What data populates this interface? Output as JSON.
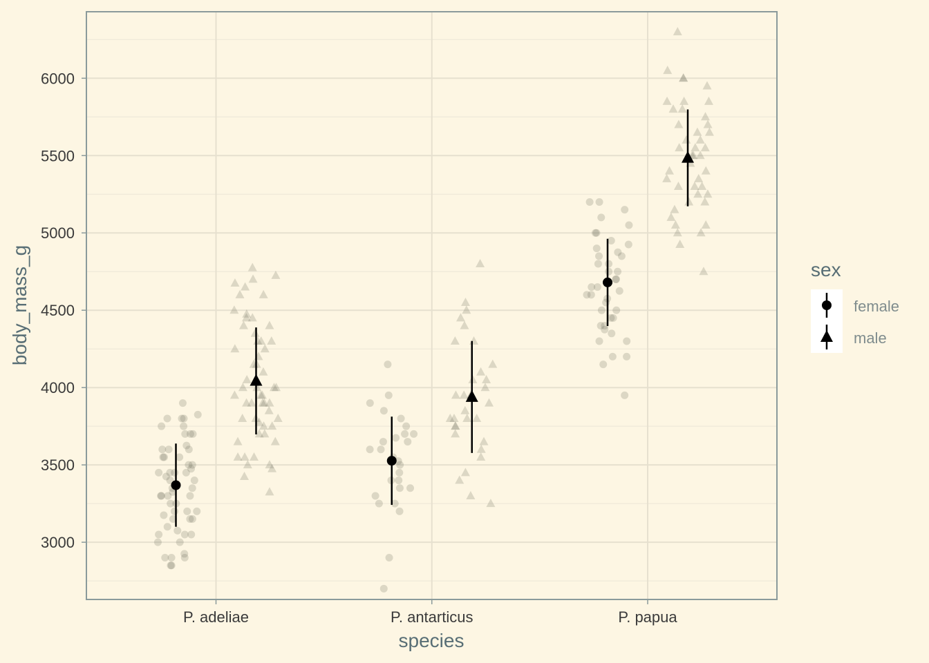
{
  "chart_data": {
    "type": "scatter",
    "title": "",
    "xlabel": "species",
    "ylabel": "body_mass_g",
    "categories": [
      "P. adeliae",
      "P. antarticus",
      "P. papua"
    ],
    "ylim": [
      2630,
      6430
    ],
    "yticks": [
      3000,
      3500,
      4000,
      4500,
      5000,
      5500,
      6000
    ],
    "grid": true,
    "legend": {
      "title": "sex",
      "placement": "right",
      "entries": [
        {
          "label": "female",
          "shape": "circle"
        },
        {
          "label": "male",
          "shape": "triangle"
        }
      ]
    },
    "summary": [
      {
        "species": "P. adeliae",
        "sex": "female",
        "mean": 3369,
        "lower": 3100,
        "upper": 3638
      },
      {
        "species": "P. adeliae",
        "sex": "male",
        "mean": 4043,
        "lower": 3697,
        "upper": 4389
      },
      {
        "species": "P. antarticus",
        "sex": "female",
        "mean": 3527,
        "lower": 3242,
        "upper": 3812
      },
      {
        "species": "P. antarticus",
        "sex": "male",
        "mean": 3939,
        "lower": 3577,
        "upper": 4301
      },
      {
        "species": "P. papua",
        "sex": "female",
        "mean": 4680,
        "lower": 4398,
        "upper": 4962
      },
      {
        "species": "P. papua",
        "sex": "male",
        "mean": 5485,
        "lower": 5172,
        "upper": 5798
      }
    ],
    "points": [
      {
        "species": "P. adeliae",
        "sex": "female",
        "values": [
          3900,
          3800,
          3800,
          3825,
          3800,
          3750,
          3750,
          3700,
          3700,
          3700,
          3625,
          3600,
          3600,
          3600,
          3550,
          3550,
          3550,
          3500,
          3500,
          3475,
          3450,
          3450,
          3450,
          3450,
          3425,
          3400,
          3400,
          3350,
          3350,
          3325,
          3300,
          3300,
          3300,
          3300,
          3250,
          3250,
          3200,
          3200,
          3200,
          3175,
          3150,
          3150,
          3150,
          3100,
          3075,
          3050,
          3050,
          3050,
          3000,
          3000,
          2925,
          2900,
          2900,
          2900,
          2850,
          2850
        ]
      },
      {
        "species": "P. adeliae",
        "sex": "male",
        "values": [
          4775,
          4725,
          4700,
          4675,
          4650,
          4600,
          4600,
          4500,
          4475,
          4450,
          4450,
          4400,
          4400,
          4350,
          4300,
          4300,
          4300,
          4250,
          4250,
          4200,
          4150,
          4150,
          4100,
          4050,
          4050,
          4000,
          4000,
          4000,
          4000,
          3950,
          3950,
          3950,
          3900,
          3900,
          3900,
          3900,
          3900,
          3850,
          3800,
          3800,
          3800,
          3775,
          3750,
          3750,
          3700,
          3700,
          3650,
          3650,
          3550,
          3550,
          3550,
          3500,
          3500,
          3475,
          3425,
          3325
        ]
      },
      {
        "species": "P. antarticus",
        "sex": "female",
        "values": [
          4150,
          3950,
          3900,
          3850,
          3800,
          3750,
          3700,
          3700,
          3675,
          3650,
          3650,
          3600,
          3600,
          3550,
          3525,
          3500,
          3450,
          3400,
          3400,
          3350,
          3350,
          3300,
          3250,
          3250,
          3200,
          2900,
          2700
        ]
      },
      {
        "species": "P. antarticus",
        "sex": "male",
        "values": [
          4800,
          4550,
          4500,
          4450,
          4400,
          4300,
          4300,
          4150,
          4100,
          4050,
          4050,
          4000,
          3950,
          3950,
          3950,
          3950,
          3900,
          3850,
          3800,
          3800,
          3800,
          3800,
          3750,
          3750,
          3700,
          3650,
          3600,
          3550,
          3450,
          3400,
          3300,
          3250
        ]
      },
      {
        "species": "P. papua",
        "sex": "female",
        "values": [
          5200,
          5200,
          5150,
          5100,
          5050,
          5000,
          5000,
          4950,
          4925,
          4900,
          4875,
          4850,
          4850,
          4800,
          4800,
          4750,
          4750,
          4700,
          4700,
          4650,
          4650,
          4625,
          4600,
          4600,
          4575,
          4550,
          4500,
          4500,
          4450,
          4450,
          4400,
          4400,
          4375,
          4350,
          4300,
          4300,
          4200,
          4200,
          4150,
          3950
        ]
      },
      {
        "species": "P. papua",
        "sex": "male",
        "values": [
          6300,
          6050,
          6000,
          6000,
          5950,
          5850,
          5850,
          5850,
          5800,
          5800,
          5750,
          5700,
          5700,
          5650,
          5650,
          5600,
          5600,
          5550,
          5550,
          5550,
          5500,
          5500,
          5500,
          5450,
          5400,
          5400,
          5350,
          5350,
          5300,
          5300,
          5300,
          5250,
          5250,
          5200,
          5200,
          5150,
          5100,
          5050,
          5050,
          5000,
          5000,
          4925,
          4750
        ]
      }
    ]
  }
}
